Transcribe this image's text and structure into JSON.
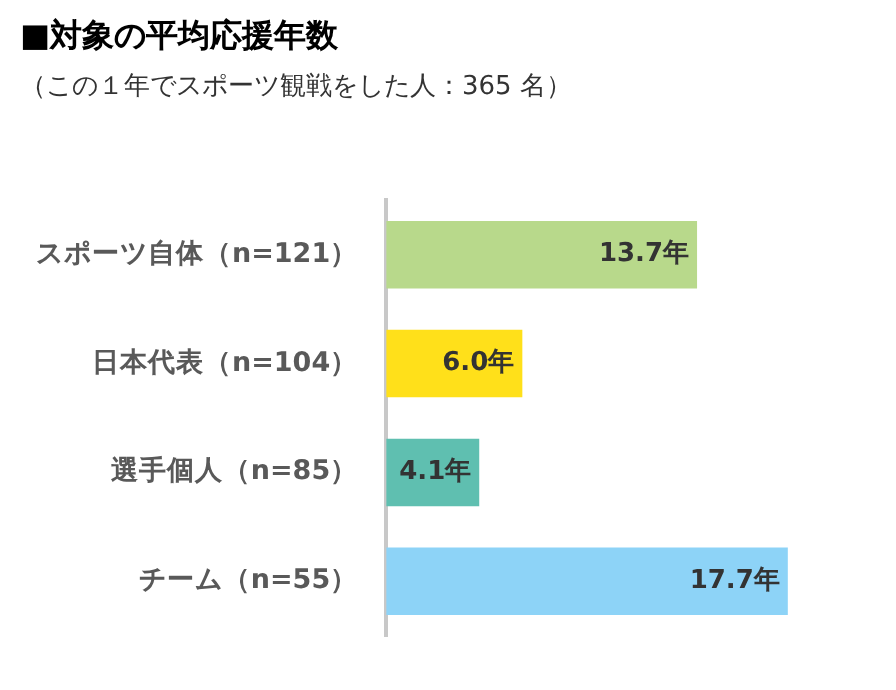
{
  "chart_data": {
    "type": "bar",
    "orientation": "horizontal",
    "title": "■対象の平均応援年数",
    "subtitle": "（この１年でスポーツ観戦をした人：365 名）",
    "categories": [
      "スポーツ自体（n=121）",
      "日本代表（n=104）",
      "選手個人（n=85）",
      "チーム（n=55）"
    ],
    "values": [
      13.7,
      6.0,
      4.1,
      17.7
    ],
    "colors": [
      "#b8d98b",
      "#ffe01a",
      "#5fbfb0",
      "#8dd3f7"
    ],
    "value_labels": [
      "13.7年",
      "6.0年",
      "4.1年",
      "17.7年"
    ],
    "legend": false
  }
}
